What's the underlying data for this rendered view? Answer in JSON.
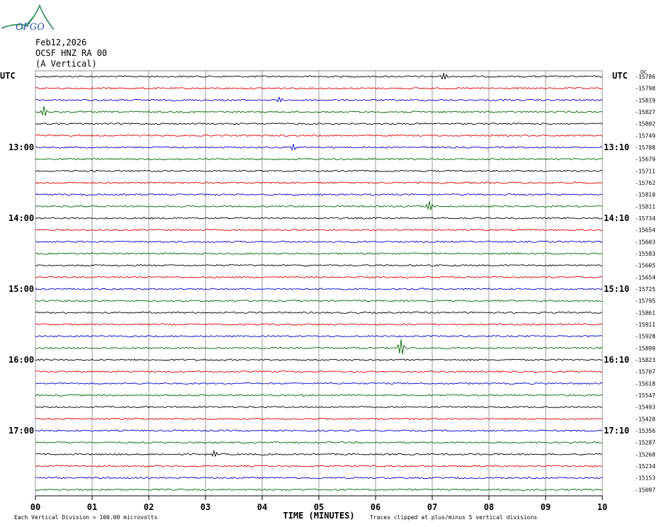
{
  "header": {
    "logo_text": "OFGO",
    "date": "Feb12,2026",
    "station": "OCSF HNZ RA 00",
    "component": "(A Vertical)"
  },
  "chart_data": {
    "type": "line",
    "title": "",
    "xlabel": "TIME (MINUTES)",
    "x_ticks": [
      "00",
      "01",
      "02",
      "03",
      "04",
      "05",
      "06",
      "07",
      "08",
      "09",
      "10"
    ],
    "xlim": [
      0,
      10
    ],
    "left_axis_label": "UTC",
    "right_axis_label": "UTC",
    "offset_unit_label": "DC",
    "left_time_labels": [
      {
        "row": 6,
        "label": "13:00"
      },
      {
        "row": 12,
        "label": "14:00"
      },
      {
        "row": 18,
        "label": "15:00"
      },
      {
        "row": 24,
        "label": "16:00"
      },
      {
        "row": 30,
        "label": "17:00"
      }
    ],
    "right_time_labels": [
      {
        "row": 6,
        "label": "13:10"
      },
      {
        "row": 12,
        "label": "14:10"
      },
      {
        "row": 18,
        "label": "15:10"
      },
      {
        "row": 24,
        "label": "16:10"
      },
      {
        "row": 30,
        "label": "17:10"
      }
    ],
    "trace_colors": [
      "#000000",
      "#dd0000",
      "#0000cc",
      "#006600"
    ],
    "trace_offsets": [
      -15786,
      -15798,
      -15819,
      -15827,
      -15802,
      -15749,
      -15708,
      -15679,
      -15711,
      -15762,
      -15810,
      -15811,
      -15734,
      -15654,
      -15603,
      -15583,
      -15605,
      -15654,
      -15725,
      -15795,
      -15861,
      -15911,
      -15928,
      -15899,
      -15823,
      -15707,
      -15618,
      -15547,
      -15493,
      -15420,
      -15356,
      -15287,
      -15268,
      -15234,
      -15153,
      -15097
    ],
    "events": [
      {
        "row": 0,
        "minute": 7.2,
        "amp": 5
      },
      {
        "row": 2,
        "minute": 4.3,
        "amp": 3
      },
      {
        "row": 3,
        "minute": 0.15,
        "amp": 8
      },
      {
        "row": 6,
        "minute": 4.55,
        "amp": 4
      },
      {
        "row": 11,
        "minute": 6.95,
        "amp": 7
      },
      {
        "row": 23,
        "minute": 6.45,
        "amp": 12
      },
      {
        "row": 32,
        "minute": 3.15,
        "amp": 4
      }
    ],
    "footer_left": "Each Vertical Division =  100.00 microvolts",
    "footer_right": "Traces clipped at plus/minus 5 vertical divisions",
    "grid": true
  }
}
